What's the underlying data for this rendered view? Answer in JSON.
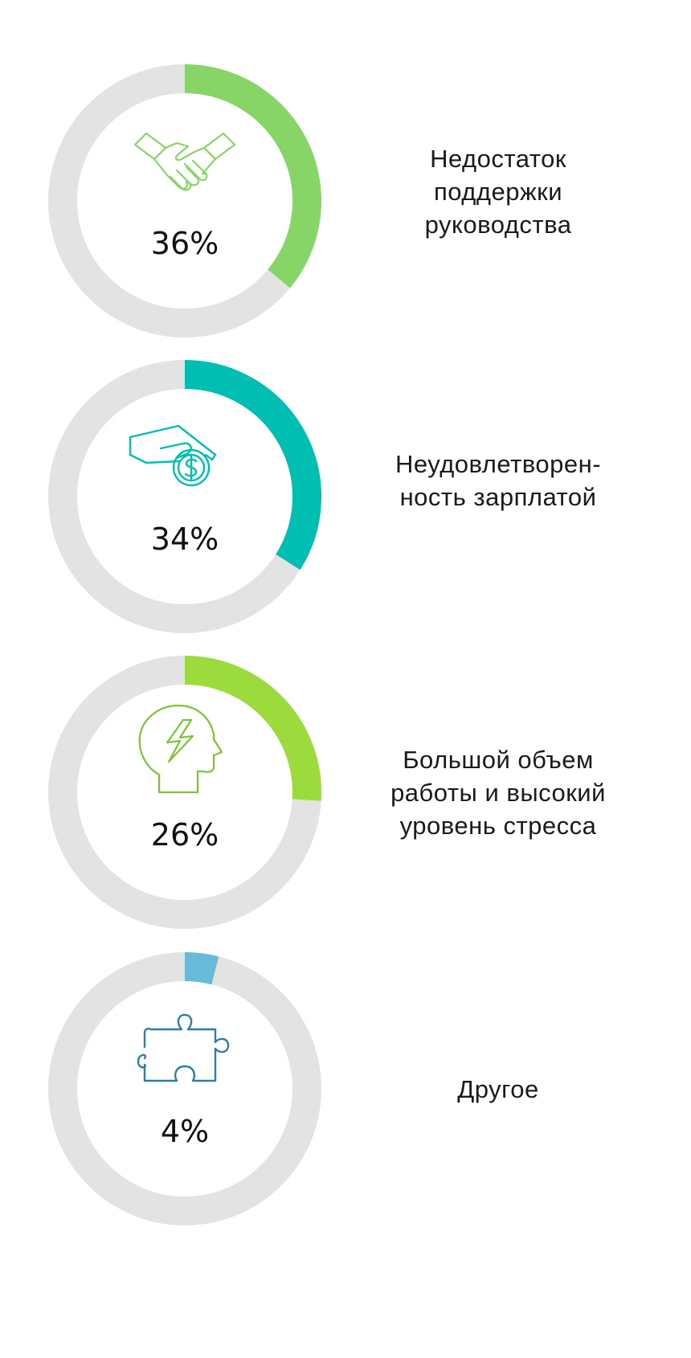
{
  "chart_data": {
    "type": "donut",
    "max": 100,
    "track_color": "#e3e3e3",
    "items": [
      {
        "label": "Недостаток\nподдержки\nруководства",
        "value": 36,
        "value_text": "36%",
        "color": "#88d567",
        "icon": "handshake-icon"
      },
      {
        "label": "Неудовлетворен-\nность зарплатой",
        "value": 34,
        "value_text": "34%",
        "color": "#00bfb2",
        "icon": "hand-coin-icon"
      },
      {
        "label": "Большой объем\nработы и высокий\nуровень стресса",
        "value": 26,
        "value_text": "26%",
        "color": "#9bdb3b",
        "icon": "stress-head-icon"
      },
      {
        "label": "Другое",
        "value": 4,
        "value_text": "4%",
        "color": "#67bad8",
        "icon": "puzzle-icon"
      }
    ]
  }
}
